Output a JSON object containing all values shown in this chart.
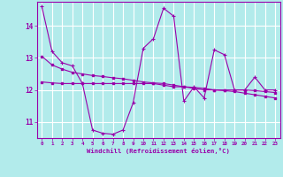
{
  "x": [
    0,
    1,
    2,
    3,
    4,
    5,
    6,
    7,
    8,
    9,
    10,
    11,
    12,
    13,
    14,
    15,
    16,
    17,
    18,
    19,
    20,
    21,
    22,
    23
  ],
  "line1": [
    14.6,
    13.2,
    12.85,
    12.75,
    12.2,
    10.75,
    10.65,
    10.62,
    10.75,
    11.6,
    13.3,
    13.6,
    14.55,
    14.3,
    11.65,
    12.1,
    11.75,
    13.25,
    13.1,
    12.0,
    12.0,
    12.4,
    12.0,
    12.0
  ],
  "line2": [
    13.05,
    12.78,
    12.65,
    12.55,
    12.5,
    12.45,
    12.42,
    12.38,
    12.35,
    12.3,
    12.25,
    12.22,
    12.2,
    12.15,
    12.1,
    12.08,
    12.05,
    12.0,
    11.98,
    11.95,
    11.9,
    11.85,
    11.8,
    11.75
  ],
  "line3": [
    12.25,
    12.22,
    12.2,
    12.2,
    12.2,
    12.2,
    12.2,
    12.2,
    12.2,
    12.2,
    12.2,
    12.2,
    12.15,
    12.1,
    12.1,
    12.05,
    12.0,
    12.0,
    12.0,
    12.0,
    12.0,
    11.98,
    11.95,
    11.92
  ],
  "color": "#9900aa",
  "bg_color": "#b2ebeb",
  "grid_color": "#d0e8e8",
  "xlabel": "Windchill (Refroidissement éolien,°C)",
  "ylim": [
    10.5,
    14.75
  ],
  "xlim": [
    -0.5,
    23.5
  ],
  "yticks": [
    11,
    12,
    13,
    14
  ],
  "xticks": [
    0,
    1,
    2,
    3,
    4,
    5,
    6,
    7,
    8,
    9,
    10,
    11,
    12,
    13,
    14,
    15,
    16,
    17,
    18,
    19,
    20,
    21,
    22,
    23
  ]
}
